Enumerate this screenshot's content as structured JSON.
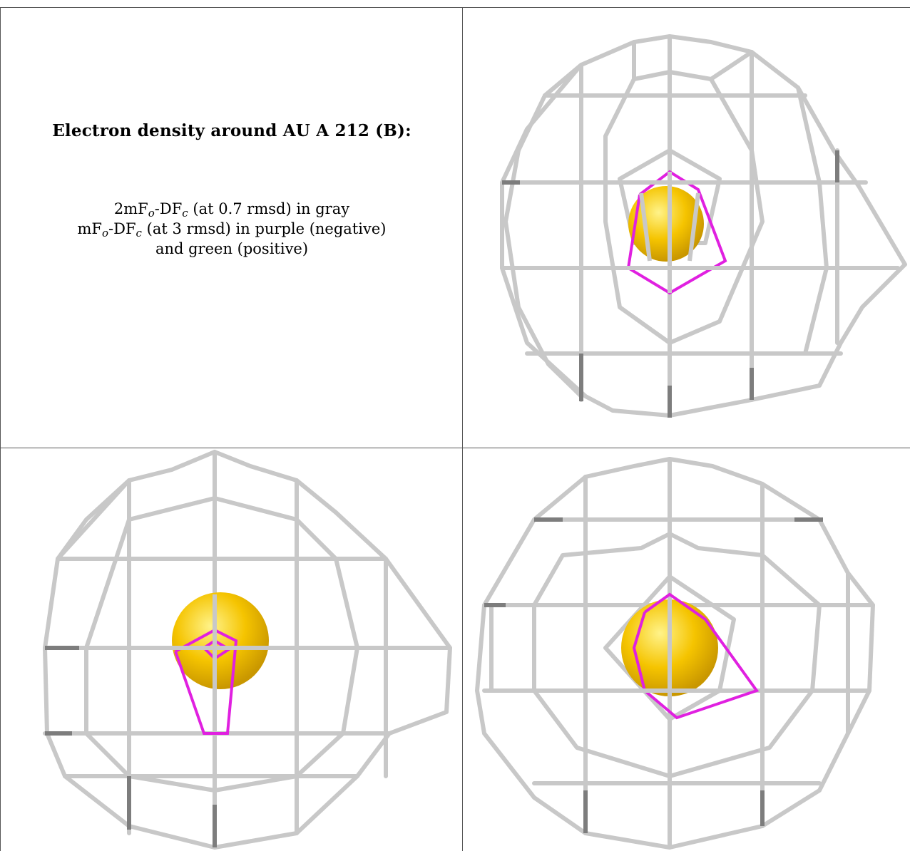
{
  "caption": {
    "title": "Electron density around AU A 212 (B):",
    "line1": {
      "prefix": "2mF",
      "sub1": "o",
      "mid": "-DF",
      "sub2": "c",
      "suffix": " (at 0.7 rmsd) in gray"
    },
    "line2": {
      "prefix": "mF",
      "sub1": "o",
      "mid": "-DF",
      "sub2": "c",
      "suffix": " (at 3 rmsd) in purple (negative)"
    },
    "line3": "and green (positive)"
  },
  "colors": {
    "mesh": "#c8c8c8",
    "mesh_dark": "#8a8a8a",
    "negative": "#e020e0",
    "atom": "#f5c400",
    "atom_shade": "#c99700",
    "border": "#555555"
  },
  "panels": [
    {
      "name": "view-top-right",
      "atom": "AU"
    },
    {
      "name": "view-bottom-left",
      "atom": "AU"
    },
    {
      "name": "view-bottom-right",
      "atom": "AU"
    }
  ]
}
